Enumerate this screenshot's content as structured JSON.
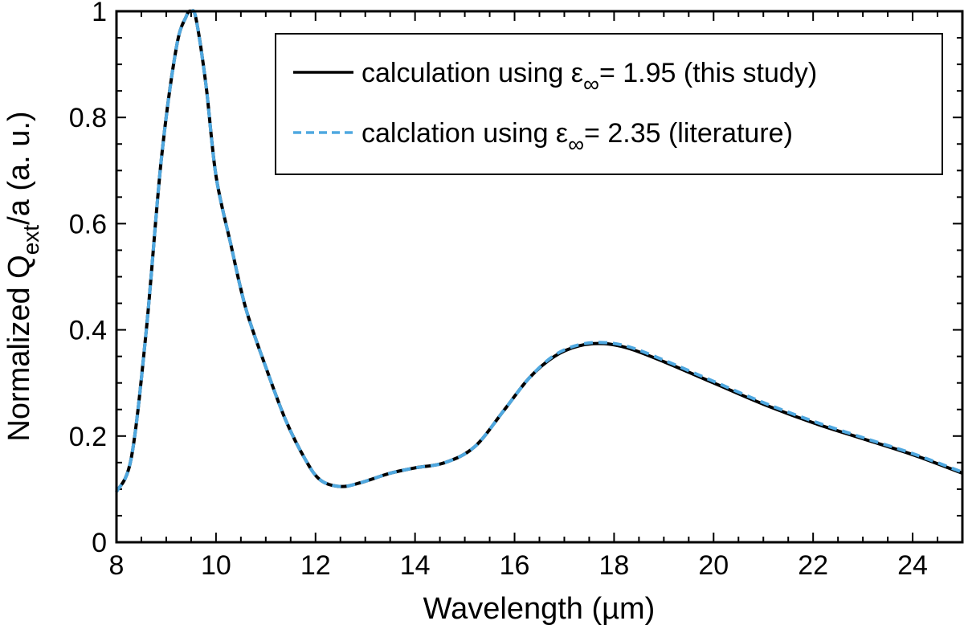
{
  "chart_data": {
    "type": "line",
    "xlabel": "Wavelength (µm)",
    "ylabel": {
      "prefix": "Normalized Q",
      "subscript": "ext",
      "suffix": "/a (a. u.)"
    },
    "xlim": [
      8,
      25
    ],
    "ylim": [
      0,
      1
    ],
    "xticks": [
      8,
      10,
      12,
      14,
      16,
      18,
      20,
      22,
      24
    ],
    "yticks": [
      0,
      0.2,
      0.4,
      0.6,
      0.8,
      1
    ],
    "ytick_labels": [
      "0",
      "0.2",
      "0.4",
      "0.6",
      "0.8",
      "1"
    ],
    "legend_position": "top-right",
    "series": [
      {
        "name": "calculation using ε∞ = 1.95 (this study)",
        "legend": {
          "before": "calculation using ε",
          "sub": "∞",
          "after": "= 1.95 (this study)"
        },
        "color": "#000000",
        "style": "solid",
        "x": [
          8.0,
          8.3,
          8.6,
          8.9,
          9.2,
          9.4,
          9.5,
          9.6,
          9.8,
          10.0,
          10.3,
          10.6,
          11.0,
          11.4,
          11.8,
          12.1,
          12.5,
          12.9,
          13.5,
          14.0,
          14.6,
          15.2,
          15.8,
          16.3,
          16.8,
          17.3,
          17.8,
          18.3,
          19.0,
          20.0,
          21.0,
          22.0,
          23.0,
          24.0,
          25.0
        ],
        "y": [
          0.095,
          0.16,
          0.4,
          0.72,
          0.93,
          0.99,
          1.0,
          0.985,
          0.86,
          0.69,
          0.56,
          0.44,
          0.33,
          0.23,
          0.155,
          0.117,
          0.105,
          0.112,
          0.13,
          0.14,
          0.15,
          0.18,
          0.25,
          0.31,
          0.35,
          0.37,
          0.374,
          0.365,
          0.34,
          0.3,
          0.26,
          0.225,
          0.195,
          0.165,
          0.13
        ]
      },
      {
        "name": "calclation using ε∞ = 2.35 (literature)",
        "legend": {
          "before": "calclation using ε",
          "sub": "∞",
          "after": "= 2.35 (literature)"
        },
        "color": "#4fa8e0",
        "style": "dashed",
        "x": [
          8.0,
          8.3,
          8.6,
          8.9,
          9.2,
          9.4,
          9.5,
          9.6,
          9.8,
          10.0,
          10.3,
          10.6,
          11.0,
          11.4,
          11.8,
          12.1,
          12.5,
          12.9,
          13.5,
          14.0,
          14.6,
          15.2,
          15.8,
          16.3,
          16.8,
          17.3,
          17.8,
          18.3,
          19.0,
          20.0,
          21.0,
          22.0,
          23.0,
          24.0,
          25.0
        ],
        "y": [
          0.095,
          0.16,
          0.4,
          0.72,
          0.93,
          0.99,
          1.0,
          0.985,
          0.86,
          0.69,
          0.56,
          0.44,
          0.33,
          0.23,
          0.155,
          0.117,
          0.105,
          0.112,
          0.13,
          0.14,
          0.15,
          0.18,
          0.25,
          0.31,
          0.352,
          0.372,
          0.376,
          0.368,
          0.343,
          0.303,
          0.263,
          0.228,
          0.197,
          0.167,
          0.132
        ]
      }
    ]
  }
}
